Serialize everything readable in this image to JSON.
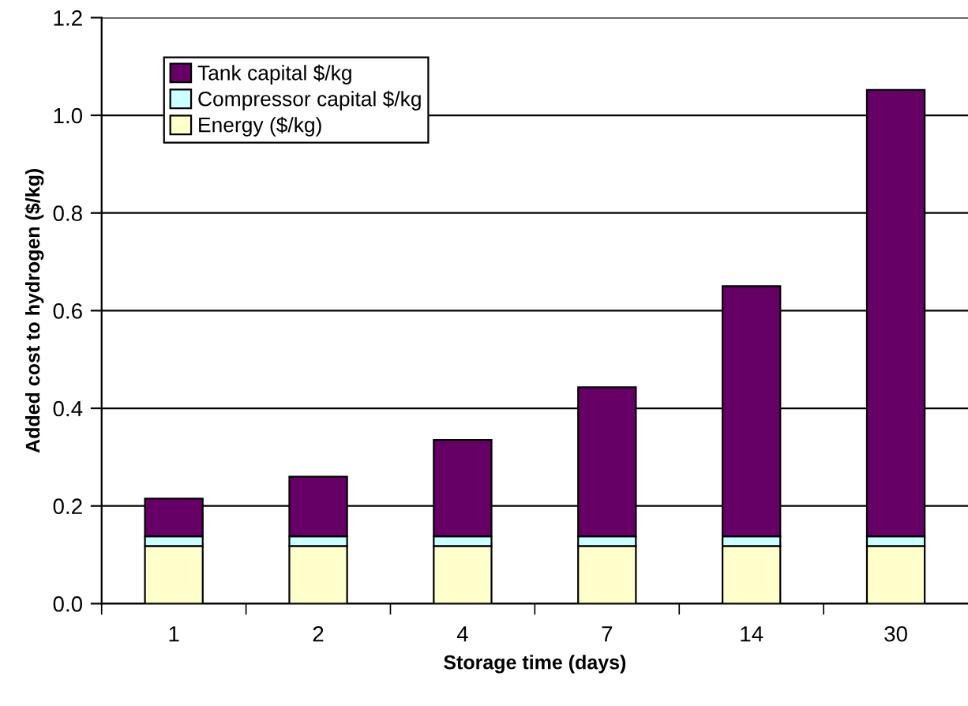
{
  "chart_data": {
    "type": "bar",
    "stacked": true,
    "xlabel": "Storage time (days)",
    "ylabel": "Added cost to hydrogen ($/kg)",
    "categories": [
      "1",
      "2",
      "4",
      "7",
      "14",
      "30"
    ],
    "series": [
      {
        "name": "Energy ($/kg)",
        "color": "#ffffcc",
        "values": [
          0.118,
          0.118,
          0.118,
          0.118,
          0.118,
          0.118
        ]
      },
      {
        "name": "Compressor capital $/kg",
        "color": "#ccffff",
        "values": [
          0.02,
          0.02,
          0.02,
          0.02,
          0.02,
          0.02
        ]
      },
      {
        "name": "Tank capital $/kg",
        "color": "#660066",
        "values": [
          0.077,
          0.122,
          0.197,
          0.305,
          0.512,
          0.914
        ]
      }
    ],
    "ylim": [
      0,
      1.2
    ],
    "yticks": [
      {
        "value": 0,
        "label": "0.0"
      },
      {
        "value": 0.2,
        "label": "0.2"
      },
      {
        "value": 0.4,
        "label": "0.4"
      },
      {
        "value": 0.6,
        "label": "0.6"
      },
      {
        "value": 0.8,
        "label": "0.8"
      },
      {
        "value": 1.0,
        "label": "1.0"
      },
      {
        "value": 1.2,
        "label": "1.2"
      }
    ],
    "grid": "y",
    "legend": "top left"
  }
}
